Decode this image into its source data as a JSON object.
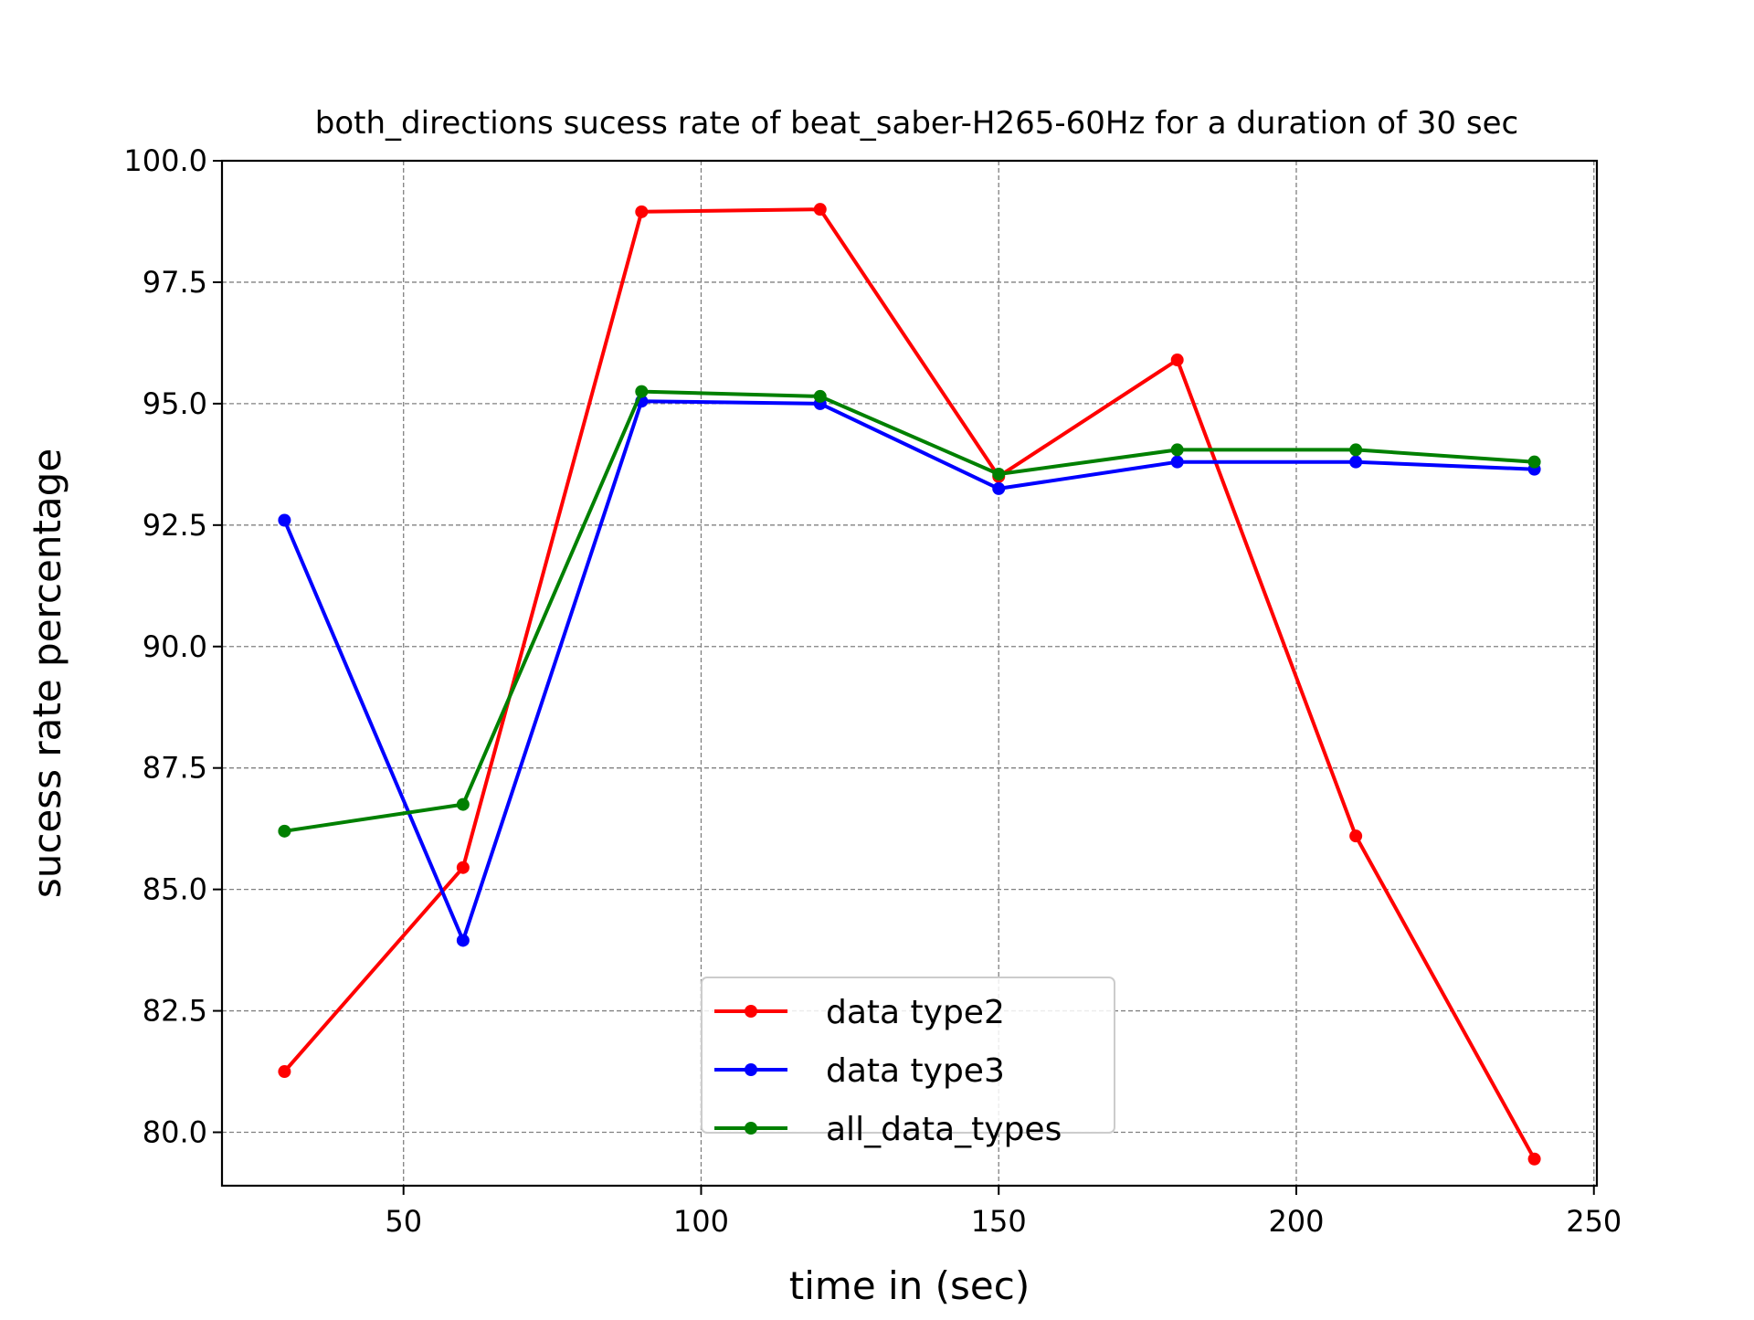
{
  "chart_data": {
    "type": "line",
    "title": "both_directions sucess rate of beat_saber-H265-60Hz for a duration of 30 sec",
    "xlabel": "time in (sec)",
    "ylabel": "sucess rate percentage",
    "xlim": [
      19.5,
      250.5
    ],
    "ylim": [
      78.9,
      100.0
    ],
    "xticks": [
      50,
      100,
      150,
      200,
      250
    ],
    "xtick_labels": [
      "50",
      "100",
      "150",
      "200",
      "250"
    ],
    "yticks": [
      80.0,
      82.5,
      85.0,
      87.5,
      90.0,
      92.5,
      95.0,
      97.5,
      100.0
    ],
    "ytick_labels": [
      "80.0",
      "82.5",
      "85.0",
      "87.5",
      "90.0",
      "92.5",
      "95.0",
      "97.5",
      "100.0"
    ],
    "grid": true,
    "legend_position": "lower-center",
    "x": [
      30,
      60,
      90,
      120,
      150,
      180,
      210,
      240
    ],
    "series": [
      {
        "name": "data type2",
        "color": "#ff0000",
        "values": [
          81.25,
          85.45,
          98.95,
          99.0,
          93.5,
          95.9,
          86.1,
          79.45
        ]
      },
      {
        "name": "data type3",
        "color": "#0000ff",
        "values": [
          92.6,
          83.95,
          95.05,
          95.0,
          93.25,
          93.8,
          93.8,
          93.65
        ]
      },
      {
        "name": "all_data_types",
        "color": "#008000",
        "values": [
          86.2,
          86.75,
          95.25,
          95.15,
          93.55,
          94.05,
          94.05,
          93.8
        ]
      }
    ]
  }
}
